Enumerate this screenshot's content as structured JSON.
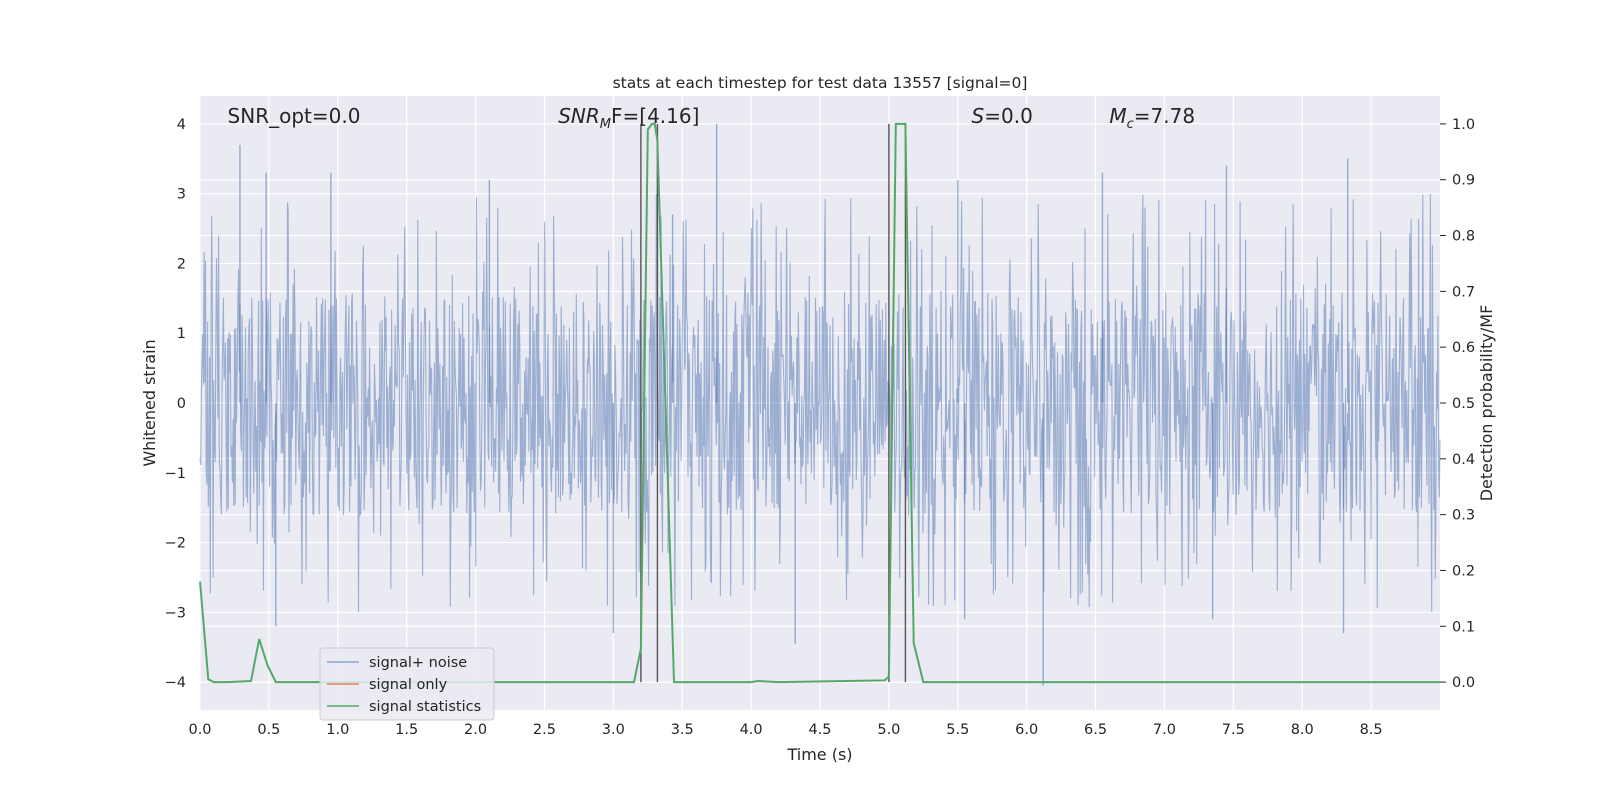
{
  "chart_data": {
    "type": "line",
    "title": "stats at each timestep for test data 13557 [signal=0]",
    "xlabel": "Time (s)",
    "ylabel": "Whitened strain",
    "y2label": "Detection probability/MF",
    "xlim": [
      0.0,
      9.0
    ],
    "ylim": [
      -4.4,
      4.4
    ],
    "y2lim": [
      -0.05,
      1.05
    ],
    "xticks": [
      "0.0",
      "0.5",
      "1.0",
      "1.5",
      "2.0",
      "2.5",
      "3.0",
      "3.5",
      "4.0",
      "4.5",
      "5.0",
      "5.5",
      "6.0",
      "6.5",
      "7.0",
      "7.5",
      "8.0",
      "8.5"
    ],
    "yticks": [
      "−4",
      "−3",
      "−2",
      "−1",
      "0",
      "1",
      "2",
      "3",
      "4"
    ],
    "y2ticks": [
      "0.0",
      "0.1",
      "0.2",
      "0.3",
      "0.4",
      "0.5",
      "0.6",
      "0.7",
      "0.8",
      "0.9",
      "1.0"
    ],
    "grid": true,
    "legend_position": "lower-left",
    "annotations": [
      {
        "text": "SNR_opt=0.0",
        "x": 0.2,
        "y": 4.1
      },
      {
        "text": "SNR_MF=[4.16]",
        "base": "SNR",
        "sub": "M",
        "tail": "F=[4.16]",
        "x": 2.6,
        "y": 4.1
      },
      {
        "text": "S=0.0",
        "base": "S",
        "sub": "",
        "tail": "=0.0",
        "x": 5.6,
        "y": 4.1
      },
      {
        "text": "M_c=7.78",
        "base": "M",
        "sub": "c",
        "tail": "=7.78",
        "x": 6.6,
        "y": 4.1
      }
    ],
    "vertical_lines": [
      3.2,
      3.32,
      5.0,
      5.12
    ],
    "vertical_line_range": [
      -4.0,
      4.0
    ],
    "series": [
      {
        "name": "signal+ noise",
        "color": "#4c72b0",
        "axis": "left",
        "kind": "whitened noise",
        "t_range": [
          0.0,
          9.0
        ],
        "core_amplitude": 1.6,
        "max_values": [
          [
            0.29,
            3.7
          ],
          [
            0.48,
            3.3
          ],
          [
            0.95,
            3.3
          ],
          [
            2.1,
            3.2
          ],
          [
            3.32,
            4.0
          ],
          [
            3.75,
            4.0
          ],
          [
            5.5,
            3.2
          ],
          [
            6.55,
            3.3
          ],
          [
            7.45,
            3.4
          ],
          [
            8.33,
            3.5
          ],
          [
            3.43,
            2.7
          ]
        ],
        "min_values": [
          [
            0.55,
            -3.2
          ],
          [
            3.0,
            -3.3
          ],
          [
            4.32,
            -3.45
          ],
          [
            6.12,
            -4.05
          ],
          [
            7.35,
            -3.1
          ],
          [
            8.3,
            -3.3
          ],
          [
            5.55,
            -3.1
          ]
        ]
      },
      {
        "name": "signal only",
        "color": "#dd8452",
        "axis": "left",
        "x": [],
        "y": []
      },
      {
        "name": "signal statistics",
        "color": "#55a868",
        "axis": "right",
        "x": [
          0.0,
          0.06,
          0.1,
          0.2,
          0.37,
          0.43,
          0.49,
          0.55,
          1.0,
          3.15,
          3.2,
          3.25,
          3.28,
          3.3,
          3.32,
          3.44,
          4.0,
          4.05,
          4.2,
          4.97,
          5.0,
          5.05,
          5.12,
          5.18,
          5.25,
          5.5,
          9.0
        ],
        "y": [
          0.18,
          0.005,
          0.0,
          0.0,
          0.002,
          0.077,
          0.03,
          0.0,
          0.0,
          0.0,
          0.06,
          0.99,
          1.0,
          1.0,
          0.97,
          0.0,
          0.0,
          0.002,
          0.0,
          0.003,
          0.01,
          1.0,
          1.0,
          0.07,
          0.0,
          0.0,
          0.0
        ]
      }
    ]
  }
}
